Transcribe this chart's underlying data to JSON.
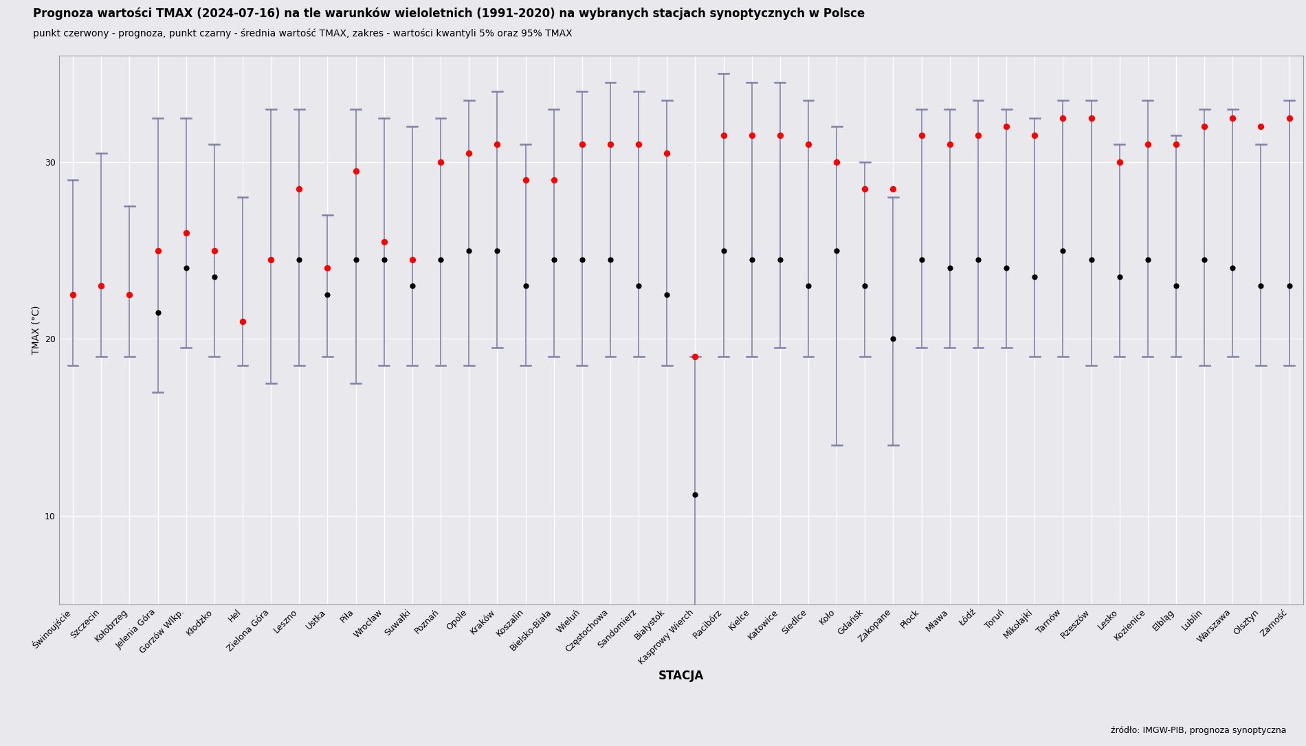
{
  "title": "Prognoza wartości TMAX (2024-07-16) na tle warunków wieloletnich (1991-2020) na wybranych stacjach synoptycznych w Polsce",
  "subtitle": "punkt czerwony - prognoza, punkt czarny - średnia wartość TMAX, zakres - wartości kwantyli 5% oraz 95% TMAX",
  "xlabel": "STACJA",
  "ylabel": "TMAX (°C)",
  "source": "źródło: IMGW-PIB, prognoza synoptyczna",
  "background_color": "#e8e8ed",
  "plot_bg_color": "#e8e8ed",
  "grid_color": "#ffffff",
  "errorbar_color": "#8080aa",
  "stations": [
    "Świnoujście",
    "Szczecin",
    "Kołobrzeg",
    "Jelenia Góra",
    "Gorzów Wlkp.",
    "Kłodzko",
    "Hel",
    "Zielona Góra",
    "Leszno",
    "Ustka",
    "Piła",
    "Wrocław",
    "Suwałki",
    "Poznań",
    "Opole",
    "Kraków",
    "Koszalin",
    "Bielsko-Biała",
    "Wieluń",
    "Częstochowa",
    "Sandomierz",
    "Białystok",
    "Kasprowy Wierch",
    "Racibórz",
    "Kielce",
    "Katowice",
    "Siedlce",
    "Koło",
    "Gdańsk",
    "Zakopane",
    "Płock",
    "Mława",
    "Łódź",
    "Toruń",
    "Mikołajki",
    "Tarnów",
    "Rzeszów",
    "Lesko",
    "Kozienice",
    "Elbląg",
    "Lublin",
    "Warszawa",
    "Olsztyn",
    "Zamość"
  ],
  "tmax_mean": [
    22.5,
    23.0,
    22.5,
    21.5,
    24.0,
    23.5,
    21.0,
    24.5,
    24.5,
    22.5,
    24.5,
    24.5,
    23.0,
    24.5,
    25.0,
    25.0,
    23.0,
    24.5,
    24.5,
    24.5,
    23.0,
    22.5,
    11.2,
    25.0,
    24.5,
    24.5,
    23.0,
    25.0,
    23.0,
    20.0,
    24.5,
    24.0,
    24.5,
    24.0,
    23.5,
    25.0,
    24.5,
    23.5,
    24.5,
    23.0,
    24.5,
    24.0,
    23.0,
    23.0
  ],
  "tmax_forecast": [
    22.5,
    23.0,
    22.5,
    25.0,
    26.0,
    25.0,
    21.0,
    24.5,
    28.5,
    24.0,
    29.5,
    25.5,
    24.5,
    30.0,
    30.5,
    31.0,
    29.0,
    29.0,
    31.0,
    31.0,
    31.0,
    30.5,
    19.0,
    31.5,
    31.5,
    31.5,
    31.0,
    30.0,
    28.5,
    28.5,
    31.5,
    31.0,
    31.5,
    32.0,
    31.5,
    32.5,
    32.5,
    30.0,
    31.0,
    31.0,
    32.0,
    32.5,
    32.0,
    32.5
  ],
  "tmax_q05": [
    18.5,
    19.0,
    19.0,
    17.0,
    19.5,
    19.0,
    18.5,
    17.5,
    18.5,
    19.0,
    17.5,
    18.5,
    18.5,
    18.5,
    18.5,
    19.5,
    18.5,
    19.0,
    18.5,
    19.0,
    19.0,
    18.5,
    3.5,
    19.0,
    19.0,
    19.5,
    19.0,
    14.0,
    19.0,
    14.0,
    19.5,
    19.5,
    19.5,
    19.5,
    19.0,
    19.0,
    18.5,
    19.0,
    19.0,
    19.0,
    18.5,
    19.0,
    18.5,
    18.5
  ],
  "tmax_q95": [
    29.0,
    30.5,
    27.5,
    32.5,
    32.5,
    31.0,
    28.0,
    33.0,
    33.0,
    27.0,
    33.0,
    32.5,
    32.0,
    32.5,
    33.5,
    34.0,
    31.0,
    33.0,
    34.0,
    34.5,
    34.0,
    33.5,
    19.0,
    35.0,
    34.5,
    34.5,
    33.5,
    32.0,
    30.0,
    28.0,
    33.0,
    33.0,
    33.5,
    33.0,
    32.5,
    33.5,
    33.5,
    31.0,
    33.5,
    31.5,
    33.0,
    33.0,
    31.0,
    33.5
  ],
  "ylim_min": 5,
  "ylim_max": 36,
  "ytick_major": [
    10,
    20,
    30
  ],
  "title_fontsize": 12,
  "subtitle_fontsize": 10,
  "tick_fontsize": 9,
  "ylabel_fontsize": 10,
  "xlabel_fontsize": 12
}
